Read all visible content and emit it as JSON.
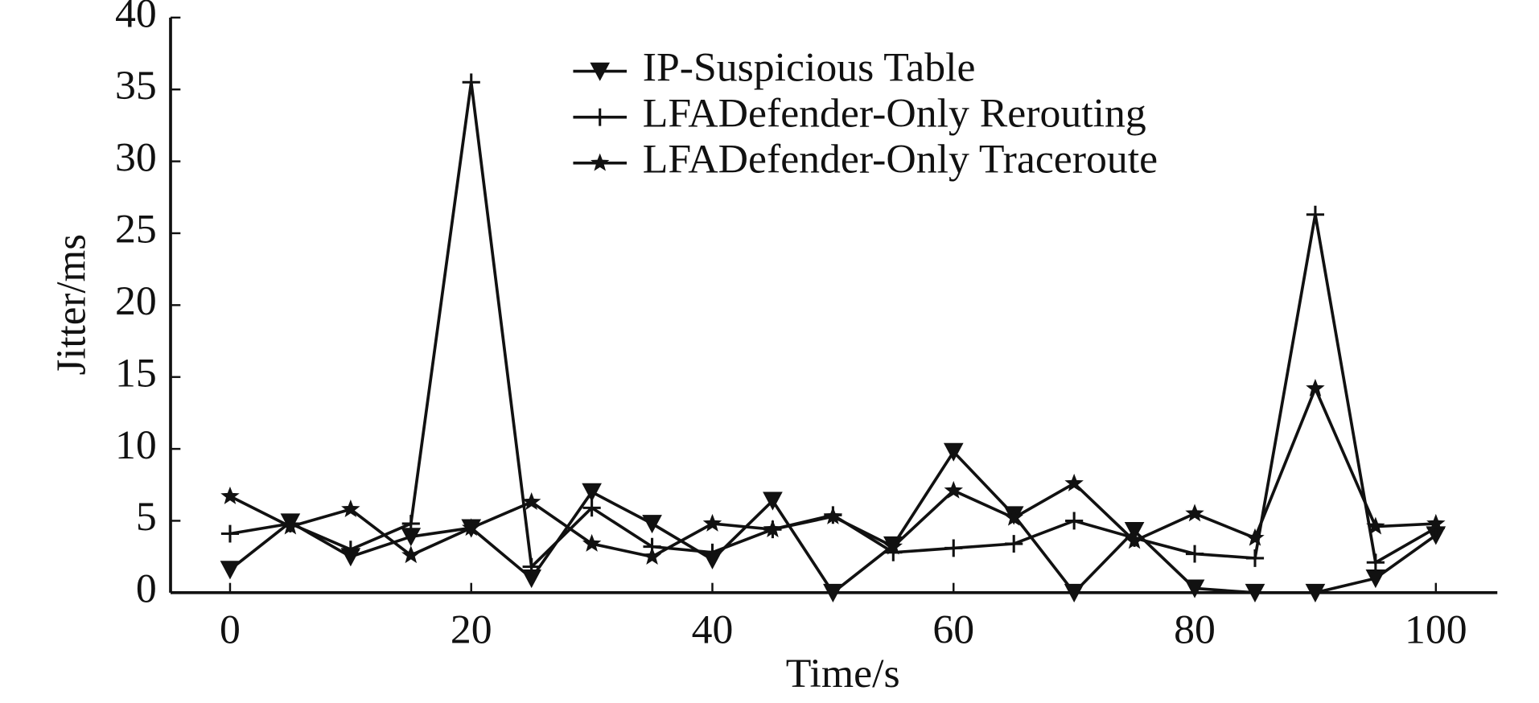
{
  "chart_data": {
    "type": "line",
    "x_label": "Time/s",
    "y_label": "Jitter/ms",
    "x": [
      0,
      5,
      10,
      15,
      20,
      25,
      30,
      35,
      40,
      45,
      50,
      55,
      60,
      65,
      70,
      75,
      80,
      85,
      90,
      95,
      100
    ],
    "series": [
      {
        "name": "IP-Suspicious Table",
        "color": "#111111",
        "marker": "triangle-down",
        "values": [
          1.6,
          4.9,
          2.5,
          3.9,
          4.5,
          1.0,
          7.0,
          4.8,
          2.3,
          6.4,
          0,
          3.3,
          9.8,
          5.4,
          0,
          4.3,
          0.3,
          0,
          0,
          1.0,
          4.0
        ]
      },
      {
        "name": "LFADefender-Only Rerouting",
        "color": "#111111",
        "marker": "plus",
        "values": [
          4.1,
          4.8,
          3.0,
          4.8,
          35.5,
          1.8,
          5.9,
          3.2,
          2.8,
          4.4,
          5.4,
          2.8,
          3.1,
          3.4,
          5.0,
          3.8,
          2.7,
          2.4,
          26.3,
          2.1,
          4.5
        ]
      },
      {
        "name": "LFADefender-Only Traceroute",
        "color": "#111111",
        "marker": "star",
        "values": [
          6.7,
          4.6,
          5.8,
          2.6,
          4.5,
          6.3,
          3.4,
          2.5,
          4.8,
          4.4,
          5.3,
          3.2,
          7.1,
          5.2,
          7.6,
          3.6,
          5.5,
          3.8,
          14.2,
          4.6,
          4.8
        ]
      }
    ],
    "xlim": [
      0,
      100
    ],
    "xticks": [
      0,
      20,
      40,
      60,
      80,
      100
    ],
    "ylim": [
      0,
      40
    ],
    "yticks": [
      0,
      5,
      10,
      15,
      20,
      25,
      30,
      35,
      40
    ],
    "legend": "top"
  }
}
